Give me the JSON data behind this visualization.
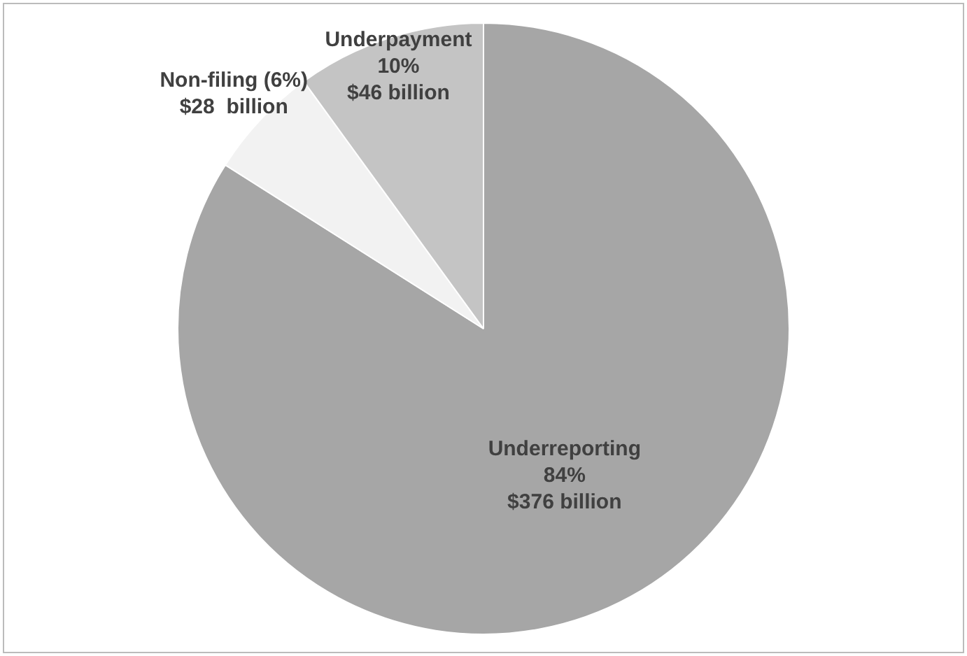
{
  "chart_data": {
    "type": "pie",
    "categories": [
      "Underreporting",
      "Non-filing",
      "Underpayment"
    ],
    "values": [
      84,
      6,
      10
    ],
    "colors": [
      "#a6a6a6",
      "#f2f2f2",
      "#c4c4c4"
    ],
    "value_labels": [
      "84%\n$376 billion",
      "(6%)\n$28  billion",
      "10%\n$46 billion"
    ],
    "legend": false
  }
}
